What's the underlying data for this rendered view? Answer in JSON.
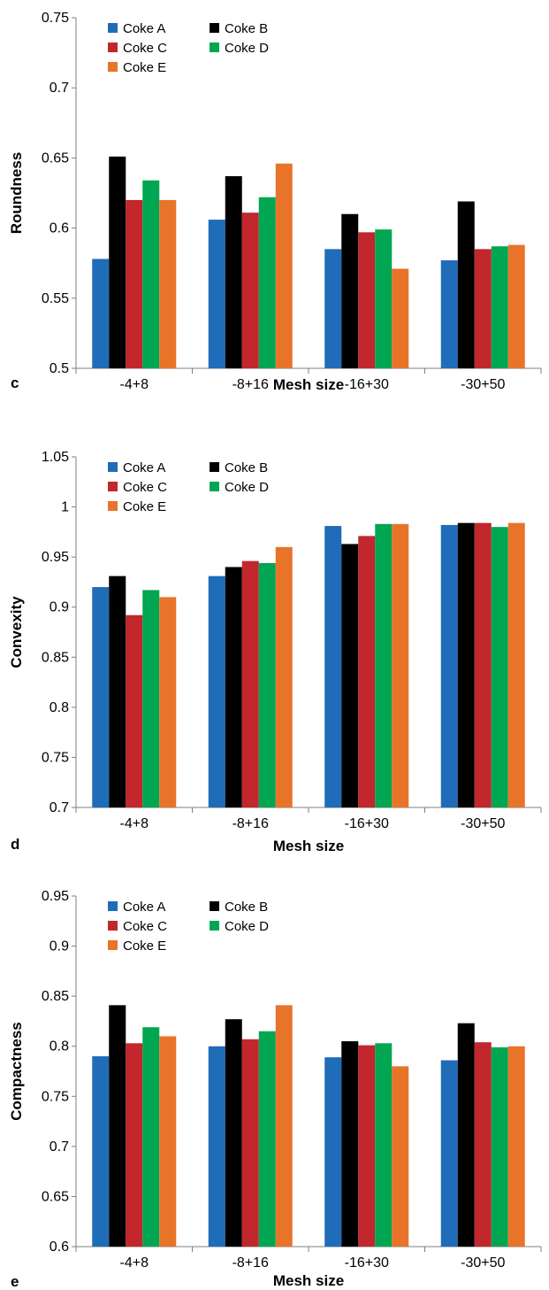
{
  "colors": {
    "Coke A": "#1f6cb8",
    "Coke B": "#000000",
    "Coke C": "#c1272d",
    "Coke D": "#00a651",
    "Coke E": "#e8742a",
    "axis": "#7f7f7f"
  },
  "chart_data": [
    {
      "type": "bar",
      "panel_label": "c",
      "categories": [
        "-4+8",
        "-8+16",
        "-16+30",
        "-30+50"
      ],
      "series": [
        {
          "name": "Coke A",
          "values": [
            0.578,
            0.606,
            0.585,
            0.577
          ]
        },
        {
          "name": "Coke B",
          "values": [
            0.651,
            0.637,
            0.61,
            0.619
          ]
        },
        {
          "name": "Coke C",
          "values": [
            0.62,
            0.611,
            0.597,
            0.585
          ]
        },
        {
          "name": "Coke D",
          "values": [
            0.634,
            0.622,
            0.599,
            0.587
          ]
        },
        {
          "name": "Coke E",
          "values": [
            0.62,
            0.646,
            0.571,
            0.588
          ]
        }
      ],
      "xlabel": "Mesh size",
      "ylabel": "Roundness",
      "ylim": [
        0.5,
        0.75
      ],
      "yticks": [
        "0.5",
        "0.55",
        "0.6",
        "0.65",
        "0.7",
        "0.75"
      ],
      "grid": false,
      "legend": "top-left"
    },
    {
      "type": "bar",
      "panel_label": "d",
      "categories": [
        "-4+8",
        "-8+16",
        "-16+30",
        "-30+50"
      ],
      "series": [
        {
          "name": "Coke A",
          "values": [
            0.92,
            0.931,
            0.981,
            0.982
          ]
        },
        {
          "name": "Coke B",
          "values": [
            0.931,
            0.94,
            0.963,
            0.984
          ]
        },
        {
          "name": "Coke C",
          "values": [
            0.892,
            0.946,
            0.971,
            0.984
          ]
        },
        {
          "name": "Coke D",
          "values": [
            0.917,
            0.944,
            0.983,
            0.98
          ]
        },
        {
          "name": "Coke E",
          "values": [
            0.91,
            0.96,
            0.983,
            0.984
          ]
        }
      ],
      "xlabel": "Mesh size",
      "ylabel": "Convexity",
      "ylim": [
        0.7,
        1.05
      ],
      "yticks": [
        "0.7",
        "0.75",
        "0.8",
        "0.85",
        "0.9",
        "0.95",
        "1",
        "1.05"
      ],
      "grid": false,
      "legend": "top-left"
    },
    {
      "type": "bar",
      "panel_label": "e",
      "categories": [
        "-4+8",
        "-8+16",
        "-16+30",
        "-30+50"
      ],
      "series": [
        {
          "name": "Coke A",
          "values": [
            0.79,
            0.8,
            0.789,
            0.786
          ]
        },
        {
          "name": "Coke B",
          "values": [
            0.841,
            0.827,
            0.805,
            0.823
          ]
        },
        {
          "name": "Coke C",
          "values": [
            0.803,
            0.807,
            0.801,
            0.804
          ]
        },
        {
          "name": "Coke D",
          "values": [
            0.819,
            0.815,
            0.803,
            0.799
          ]
        },
        {
          "name": "Coke E",
          "values": [
            0.81,
            0.841,
            0.78,
            0.8
          ]
        }
      ],
      "xlabel": "Mesh size",
      "ylabel": "Compactness",
      "ylim": [
        0.6,
        0.95
      ],
      "yticks": [
        "0.6",
        "0.65",
        "0.7",
        "0.75",
        "0.8",
        "0.85",
        "0.9",
        "0.95"
      ],
      "grid": false,
      "legend": "top-left"
    }
  ]
}
